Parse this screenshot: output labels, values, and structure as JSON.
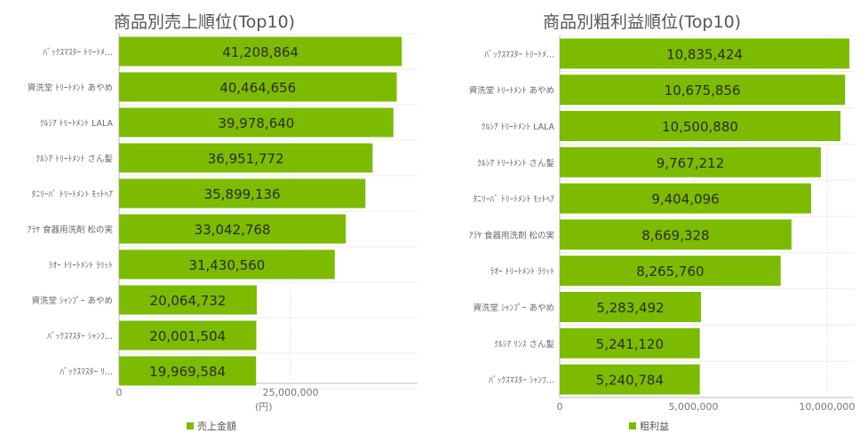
{
  "chart_data": [
    {
      "type": "bar",
      "orientation": "horizontal",
      "title": "商品別売上順位(Top10)",
      "categories": [
        "ﾊﾞｯｸｽﾏｽﾀｰ ﾄﾘｰﾄﾒ...",
        "資洗堂 ﾄﾘｰﾄﾒﾝﾄ あやめ",
        "ｸﾙｼｱ ﾄﾘｰﾄﾒﾝﾄ LALA",
        "ｸﾙｼｱ ﾄﾘｰﾄﾒﾝﾄ さん髪",
        "ﾀﾆﾘｰﾊﾞ ﾄﾘｰﾄﾒﾝﾄ ﾓｯﾄﾍｱ",
        "ｱﾗﾔ 食器用洗剤 松の実",
        "ﾗｵｰ ﾄﾘｰﾄﾒﾝﾄ ﾗﾘｯﾄ",
        "資洗堂 ｼｬﾝﾌﾟｰ あやめ",
        "ﾊﾞｯｸｽﾏｽﾀｰ ｼｬﾝﾌ...",
        "ﾊﾞｯｸｽﾏｽﾀｰ ﾘ..."
      ],
      "series": [
        {
          "name": "売上金額",
          "color": "#7cbb00",
          "values": [
            41208864,
            40464656,
            39978640,
            36951772,
            35899136,
            33042768,
            31430560,
            20064732,
            20001504,
            19969584
          ]
        }
      ],
      "value_labels": [
        "41,208,864",
        "40,464,656",
        "39,978,640",
        "36,951,772",
        "35,899,136",
        "33,042,768",
        "31,430,560",
        "20,064,732",
        "20,001,504",
        "19,969,584"
      ],
      "xlim": [
        0,
        43500000
      ],
      "xticks": [
        0,
        25000000
      ],
      "xtick_labels": [
        "0",
        "25,000,000"
      ],
      "xlabel": "(円)",
      "grid": true,
      "legend_position": "bottom"
    },
    {
      "type": "bar",
      "orientation": "horizontal",
      "title": "商品別粗利益順位(Top10)",
      "categories": [
        "ﾊﾞｯｸｽﾏｽﾀｰ ﾄﾘｰﾄﾒ...",
        "資洗堂 ﾄﾘｰﾄﾒﾝﾄ あやめ",
        "ｸﾙｼｱ ﾄﾘｰﾄﾒﾝﾄ LALA",
        "ｸﾙｼｱ ﾄﾘｰﾄﾒﾝﾄ さん髪",
        "ﾀﾆﾘｰﾊﾞ ﾄﾘｰﾄﾒﾝﾄ ﾓｯﾄﾍｱ",
        "ｱﾗﾔ 食器用洗剤 松の実",
        "ﾗｵｰ ﾄﾘｰﾄﾒﾝﾄ ﾗﾘｯﾄ",
        "資洗堂 ｼｬﾝﾌﾟｰ あやめ",
        "ｸﾙｼｱ ﾘﾝｽ さん髪",
        "ﾊﾞｯｸｽﾏｽﾀｰ ｼｬﾝﾌ..."
      ],
      "series": [
        {
          "name": "粗利益",
          "color": "#7cbb00",
          "values": [
            10835424,
            10675856,
            10500880,
            9767212,
            9404096,
            8669328,
            8265760,
            5283492,
            5241120,
            5240784
          ]
        }
      ],
      "value_labels": [
        "10,835,424",
        "10,675,856",
        "10,500,880",
        "9,767,212",
        "9,404,096",
        "8,669,328",
        "8,265,760",
        "5,283,492",
        "5,241,120",
        "5,240,784"
      ],
      "xlim": [
        0,
        11000000
      ],
      "xticks": [
        0,
        5000000,
        10000000
      ],
      "xtick_labels": [
        "0",
        "5,000,000",
        "10,000,000"
      ],
      "xlabel": "",
      "grid": true,
      "legend_position": "bottom"
    }
  ]
}
